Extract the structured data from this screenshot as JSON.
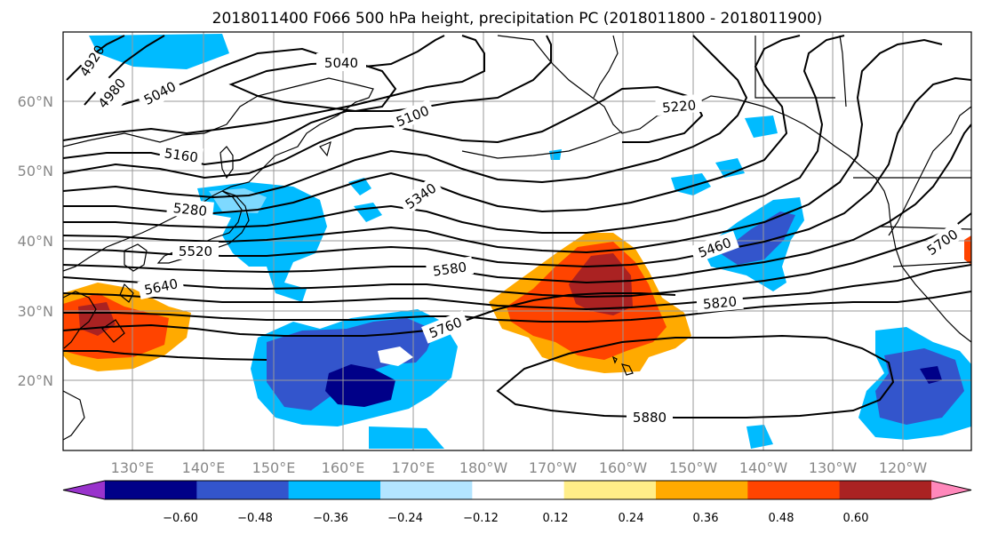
{
  "title": "2018011400 F066 500 hPa height, precipitation PC (2018011800 - 2018011900)",
  "lat_ticks": [
    "60°N",
    "50°N",
    "40°N",
    "30°N",
    "20°N"
  ],
  "lon_ticks": [
    "130°E",
    "140°E",
    "150°E",
    "160°E",
    "170°E",
    "180°W",
    "170°W",
    "160°W",
    "150°W",
    "140°W",
    "130°W",
    "120°W"
  ],
  "colorbar": {
    "colors": [
      "#9933cc",
      "#000088",
      "#3355cc",
      "#00bbff",
      "#b3e5ff",
      "#ffffff",
      "#ffee88",
      "#ffaa00",
      "#ff4400",
      "#aa2222",
      "#ff88bb"
    ],
    "tick_labels": [
      "−0.60",
      "−0.48",
      "−0.36",
      "−0.24",
      "−0.12",
      "0.12",
      "0.24",
      "0.36",
      "0.48",
      "0.60"
    ]
  },
  "contour_labels": [
    "4920",
    "4980",
    "5040",
    "5040",
    "5100",
    "5160",
    "5220",
    "5280",
    "5340",
    "5460",
    "5520",
    "5580",
    "5640",
    "5700",
    "5760",
    "5820",
    "5880"
  ]
}
